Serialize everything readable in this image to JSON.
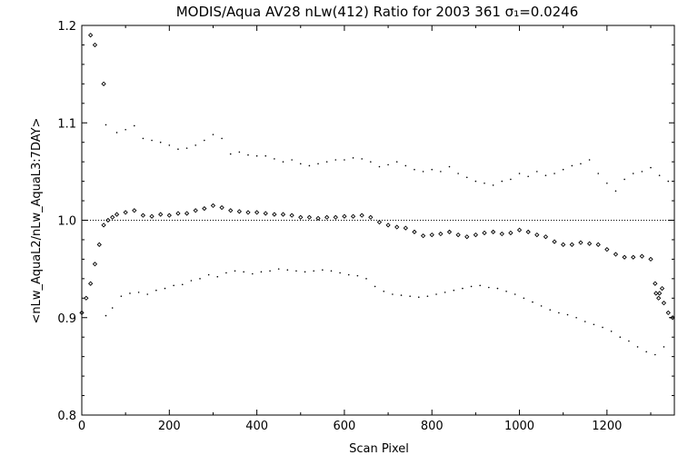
{
  "chart_data": {
    "type": "scatter",
    "title": "MODIS/Aqua AV28 nLw(412) Ratio for 2003 361 σ₁=0.0246",
    "xlabel": "Scan Pixel",
    "ylabel": "<nLw_AquaL2/nLw_AquaL3:7DAY>",
    "xlim": [
      0,
      1354
    ],
    "ylim": [
      0.8,
      1.2
    ],
    "xticks": [
      0,
      200,
      400,
      600,
      800,
      1000,
      1200
    ],
    "yticks": [
      0.8,
      0.9,
      1.0,
      1.1,
      1.2
    ],
    "xtick_labels": [
      "0",
      "200",
      "400",
      "600",
      "800",
      "1000",
      "1200"
    ],
    "ytick_labels": [
      "0.8",
      "0.9",
      "1.0",
      "1.1",
      "1.2"
    ],
    "reference_line": 1.0,
    "grid": false,
    "legend": "none",
    "series": [
      {
        "marker": "diamond",
        "x": [
          0,
          10,
          20,
          30,
          40,
          50,
          60,
          70,
          80,
          100,
          120,
          140,
          160,
          180,
          200,
          220,
          240,
          260,
          280,
          300,
          320,
          340,
          360,
          380,
          400,
          420,
          440,
          460,
          480,
          500,
          520,
          540,
          560,
          580,
          600,
          620,
          640,
          660,
          680,
          700,
          720,
          740,
          760,
          780,
          800,
          820,
          840,
          860,
          880,
          900,
          920,
          940,
          960,
          980,
          1000,
          1020,
          1040,
          1060,
          1080,
          1100,
          1120,
          1140,
          1160,
          1180,
          1200,
          1220,
          1240,
          1260,
          1280,
          1300,
          1310,
          1320,
          1330,
          1340,
          1350
        ],
        "y": [
          0.905,
          0.92,
          0.935,
          0.955,
          0.975,
          0.995,
          1.0,
          1.003,
          1.006,
          1.008,
          1.01,
          1.005,
          1.004,
          1.006,
          1.005,
          1.007,
          1.007,
          1.01,
          1.012,
          1.015,
          1.013,
          1.01,
          1.009,
          1.008,
          1.008,
          1.007,
          1.006,
          1.006,
          1.005,
          1.003,
          1.003,
          1.002,
          1.003,
          1.003,
          1.004,
          1.004,
          1.005,
          1.003,
          0.998,
          0.995,
          0.993,
          0.992,
          0.988,
          0.984,
          0.985,
          0.986,
          0.988,
          0.985,
          0.983,
          0.985,
          0.987,
          0.988,
          0.986,
          0.987,
          0.99,
          0.988,
          0.985,
          0.983,
          0.978,
          0.975,
          0.975,
          0.977,
          0.976,
          0.975,
          0.97,
          0.965,
          0.962,
          0.962,
          0.963,
          0.96,
          0.935,
          0.925,
          0.915,
          0.905,
          0.9
        ],
        "outliers": {
          "x": [
            20,
            30,
            50,
            1312,
            1318,
            1326
          ],
          "y": [
            1.19,
            1.18,
            1.14,
            0.925,
            0.92,
            0.93
          ]
        }
      },
      {
        "marker": "dot",
        "x": [
          55,
          80,
          100,
          120,
          140,
          160,
          180,
          200,
          220,
          240,
          260,
          280,
          300,
          320,
          340,
          360,
          380,
          400,
          420,
          440,
          460,
          480,
          500,
          520,
          540,
          560,
          580,
          600,
          620,
          640,
          660,
          680,
          700,
          720,
          740,
          760,
          780,
          800,
          820,
          840,
          860,
          880,
          900,
          920,
          940,
          960,
          980,
          1000,
          1020,
          1040,
          1060,
          1080,
          1100,
          1120,
          1140,
          1160,
          1180,
          1200,
          1220,
          1240,
          1260,
          1280,
          1300,
          1320,
          1340
        ],
        "y": [
          1.098,
          1.09,
          1.093,
          1.097,
          1.084,
          1.082,
          1.08,
          1.077,
          1.073,
          1.074,
          1.077,
          1.082,
          1.088,
          1.084,
          1.068,
          1.07,
          1.067,
          1.066,
          1.066,
          1.063,
          1.06,
          1.062,
          1.058,
          1.056,
          1.058,
          1.06,
          1.062,
          1.062,
          1.064,
          1.063,
          1.06,
          1.055,
          1.057,
          1.06,
          1.056,
          1.052,
          1.05,
          1.052,
          1.05,
          1.055,
          1.048,
          1.044,
          1.04,
          1.038,
          1.036,
          1.04,
          1.042,
          1.048,
          1.045,
          1.05,
          1.046,
          1.048,
          1.052,
          1.056,
          1.058,
          1.062,
          1.048,
          1.038,
          1.03,
          1.042,
          1.048,
          1.05,
          1.054,
          1.046,
          1.04
        ]
      },
      {
        "marker": "dot",
        "x": [
          55,
          70,
          90,
          110,
          130,
          150,
          170,
          190,
          210,
          230,
          250,
          270,
          290,
          310,
          330,
          350,
          370,
          390,
          410,
          430,
          450,
          470,
          490,
          510,
          530,
          550,
          570,
          590,
          610,
          630,
          650,
          670,
          690,
          710,
          730,
          750,
          770,
          790,
          810,
          830,
          850,
          870,
          890,
          910,
          930,
          950,
          970,
          990,
          1010,
          1030,
          1050,
          1070,
          1090,
          1110,
          1130,
          1150,
          1170,
          1190,
          1210,
          1230,
          1250,
          1270,
          1290,
          1310,
          1330,
          1345
        ],
        "y": [
          0.902,
          0.91,
          0.922,
          0.925,
          0.926,
          0.924,
          0.928,
          0.93,
          0.933,
          0.934,
          0.938,
          0.94,
          0.944,
          0.942,
          0.946,
          0.948,
          0.947,
          0.945,
          0.947,
          0.948,
          0.95,
          0.949,
          0.948,
          0.947,
          0.948,
          0.949,
          0.948,
          0.946,
          0.944,
          0.943,
          0.94,
          0.932,
          0.927,
          0.924,
          0.923,
          0.922,
          0.921,
          0.922,
          0.924,
          0.926,
          0.928,
          0.93,
          0.932,
          0.933,
          0.931,
          0.93,
          0.927,
          0.924,
          0.92,
          0.916,
          0.912,
          0.908,
          0.905,
          0.903,
          0.9,
          0.896,
          0.893,
          0.89,
          0.886,
          0.88,
          0.876,
          0.87,
          0.865,
          0.862,
          0.87,
          0.9
        ]
      }
    ]
  }
}
